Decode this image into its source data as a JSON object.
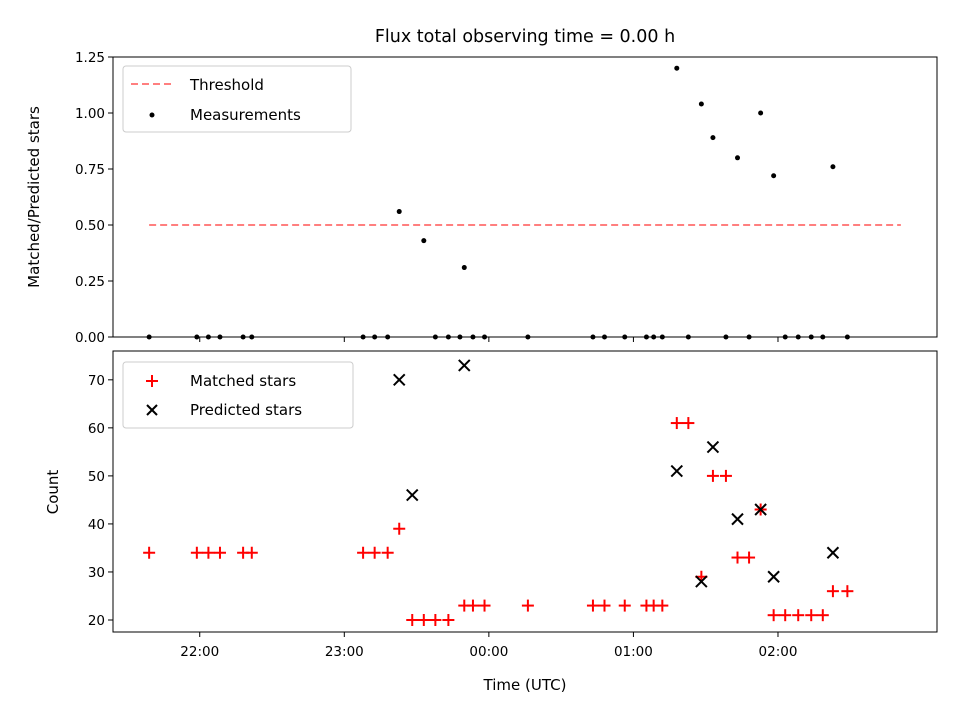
{
  "chart_data": [
    {
      "type": "scatter",
      "title": "Flux total observing time = 0.00 h",
      "xlabel": "",
      "ylabel": "Matched/Predicted stars",
      "xlim": [
        -2.6,
        3.1
      ],
      "ylim": [
        0,
        1.25
      ],
      "yticks": [
        0,
        0.25,
        0.5,
        0.75,
        1.0,
        1.25
      ],
      "ytick_labels": [
        "0.00",
        "0.25",
        "0.50",
        "0.75",
        "1.00",
        "1.25"
      ],
      "xticks": [
        -2,
        -1,
        0,
        1,
        2
      ],
      "show_xtick_labels": false,
      "legend_position": "top-left",
      "threshold": {
        "name": "Threshold",
        "value": 0.5,
        "x_range": [
          -2.35,
          2.85
        ],
        "color": "#ff7f7f",
        "style": "dashed"
      },
      "series": [
        {
          "name": "Measurements",
          "marker": "dot",
          "color": "#000000",
          "x": [
            -2.35,
            -2.02,
            -1.94,
            -1.86,
            -1.7,
            -1.64,
            -0.87,
            -0.79,
            -0.7,
            -0.62,
            -0.45,
            -0.37,
            -0.28,
            -0.2,
            -0.17,
            -0.11,
            -0.03,
            0.27,
            0.72,
            0.8,
            0.94,
            1.09,
            1.14,
            1.2,
            1.3,
            1.38,
            1.47,
            1.55,
            1.64,
            1.72,
            1.8,
            1.88,
            1.97,
            2.05,
            2.14,
            2.23,
            2.31,
            2.38,
            2.48
          ],
          "y": [
            0,
            0,
            0,
            0,
            0,
            0,
            0,
            0,
            0,
            0.56,
            0.43,
            0,
            0,
            0,
            0.31,
            0,
            0,
            0,
            0,
            0,
            0,
            0,
            0,
            0,
            1.2,
            0,
            1.04,
            0.89,
            0,
            0.8,
            0,
            1.0,
            0.72,
            0,
            0,
            0,
            0,
            0.76,
            0
          ]
        }
      ]
    },
    {
      "type": "scatter",
      "title": "",
      "xlabel": "Time (UTC)",
      "ylabel": "Count",
      "xlim": [
        -2.6,
        3.1
      ],
      "ylim": [
        17.5,
        76
      ],
      "yticks": [
        20,
        30,
        40,
        50,
        60,
        70
      ],
      "ytick_labels": [
        "20",
        "30",
        "40",
        "50",
        "60",
        "70"
      ],
      "xticks": [
        -2,
        -1,
        0,
        1,
        2
      ],
      "xtick_labels": [
        "22:00",
        "23:00",
        "00:00",
        "01:00",
        "02:00"
      ],
      "legend_position": "top-left",
      "series": [
        {
          "name": "Matched stars",
          "marker": "plus",
          "color": "#ff0000",
          "x": [
            -2.35,
            -2.02,
            -1.94,
            -1.86,
            -1.7,
            -1.64,
            -0.87,
            -0.79,
            -0.7,
            -0.62,
            -0.53,
            -0.45,
            -0.37,
            -0.28,
            -0.17,
            -0.11,
            -0.03,
            0.27,
            0.72,
            0.8,
            0.94,
            1.09,
            1.14,
            1.2,
            1.3,
            1.38,
            1.47,
            1.55,
            1.64,
            1.72,
            1.8,
            1.88,
            1.97,
            2.05,
            2.14,
            2.23,
            2.31,
            2.38,
            2.48
          ],
          "y": [
            34,
            34,
            34,
            34,
            34,
            34,
            34,
            34,
            34,
            39,
            20,
            20,
            20,
            20,
            23,
            23,
            23,
            23,
            23,
            23,
            23,
            23,
            23,
            23,
            61,
            61,
            29,
            50,
            50,
            33,
            33,
            43,
            21,
            21,
            21,
            21,
            21,
            26,
            26
          ]
        },
        {
          "name": "Predicted stars",
          "marker": "x",
          "color": "#000000",
          "x": [
            -0.62,
            -0.53,
            -0.17,
            1.3,
            1.47,
            1.55,
            1.72,
            1.88,
            1.97,
            2.38
          ],
          "y": [
            70,
            46,
            73,
            51,
            28,
            56,
            41,
            43,
            29,
            34
          ]
        }
      ]
    }
  ]
}
